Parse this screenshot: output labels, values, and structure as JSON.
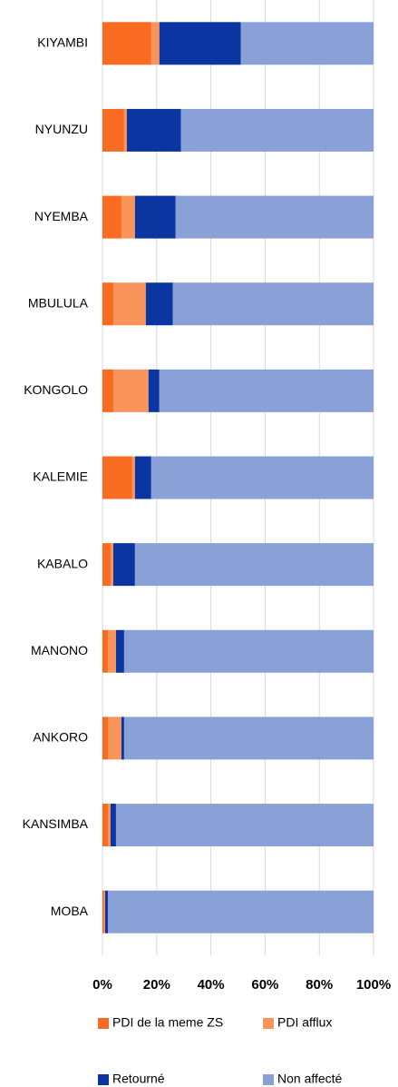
{
  "chart_data": {
    "type": "bar",
    "orientation": "horizontal",
    "stacked": true,
    "categories": [
      "KIYAMBI",
      "NYUNZU",
      "NYEMBA",
      "MBULULA",
      "KONGOLO",
      "KALEMIE",
      "KABALO",
      "MANONO",
      "ANKORO",
      "KANSIMBA",
      "MOBA"
    ],
    "series": [
      {
        "name": "PDI de la meme ZS",
        "color": "#f96b21",
        "values": [
          18,
          8,
          7,
          4,
          4,
          11,
          3,
          2,
          2,
          2,
          0.5
        ]
      },
      {
        "name": "PDI afflux",
        "color": "#f9955a",
        "values": [
          3,
          1,
          5,
          12,
          13,
          1,
          1,
          3,
          5,
          1,
          0.5
        ]
      },
      {
        "name": "Retourné",
        "color": "#0b35a0",
        "values": [
          30,
          20,
          15,
          10,
          4,
          6,
          8,
          3,
          1,
          2,
          1
        ]
      },
      {
        "name": "Non affecté",
        "color": "#89a1d6",
        "values": [
          49,
          71,
          73,
          74,
          79,
          82,
          88,
          92,
          92,
          95,
          98
        ]
      }
    ],
    "xlim": [
      0,
      100
    ],
    "xticks": [
      {
        "value": 0,
        "label": "0%"
      },
      {
        "value": 20,
        "label": "20%"
      },
      {
        "value": 40,
        "label": "40%"
      },
      {
        "value": 60,
        "label": "60%"
      },
      {
        "value": 80,
        "label": "80%"
      },
      {
        "value": 100,
        "label": "100%"
      }
    ],
    "grid": true,
    "legend": "bottom"
  }
}
